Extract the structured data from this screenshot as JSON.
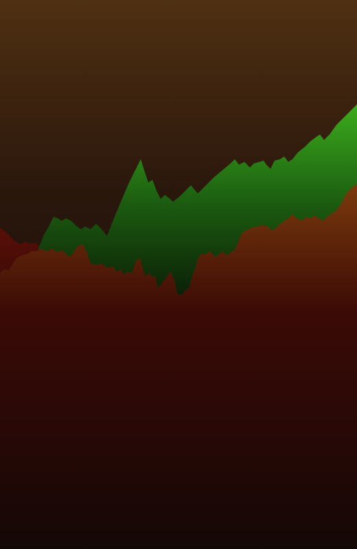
{
  "artwork": {
    "description": "",
    "colors": {
      "sky_top": "#4f3012",
      "sky_mid": "#2a170c",
      "sky_bottom": "#0f0807",
      "green_top": "#3aa81c",
      "green_mid": "#1b5a10",
      "green_bottom": "#0a1c06",
      "red_top": "#7a3a0c",
      "red_mid": "#3b0a06",
      "red_bottom": "#140806",
      "left_red": "#5a0f08"
    },
    "layers": [
      {
        "name": "sky-gradient"
      },
      {
        "name": "red-hill-left"
      },
      {
        "name": "green-mountain-range"
      },
      {
        "name": "red-foreground-hills"
      }
    ]
  }
}
